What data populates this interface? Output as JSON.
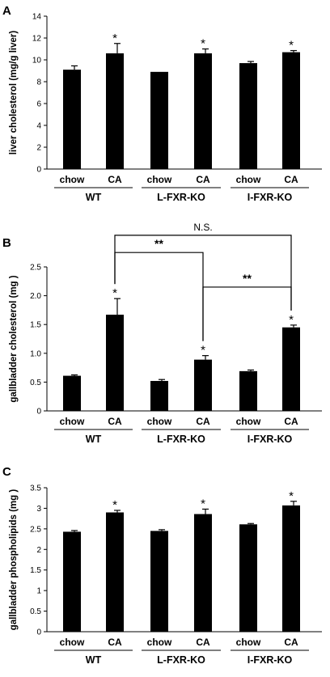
{
  "chart_data": [
    {
      "type": "bar",
      "panel_label": "A",
      "ylabel": "liver cholesterol (mg/g liver)",
      "ylim": [
        0,
        14
      ],
      "yticks": [
        0,
        2,
        4,
        6,
        8,
        10,
        12,
        14
      ],
      "categories": [
        "chow",
        "CA",
        "chow",
        "CA",
        "chow",
        "CA"
      ],
      "groups": [
        "WT",
        "L-FXR-KO",
        "I-FXR-KO"
      ],
      "values": [
        9.1,
        10.6,
        8.9,
        10.6,
        9.7,
        10.7
      ],
      "errors": [
        0.35,
        0.9,
        0.0,
        0.4,
        0.15,
        0.15
      ],
      "markers": [
        "",
        "*",
        "",
        "*",
        "",
        "*"
      ],
      "bar_color": "#000000",
      "brackets": []
    },
    {
      "type": "bar",
      "panel_label": "B",
      "ylabel": "gallbladder cholesterol (mg )",
      "ylim": [
        0,
        2.5
      ],
      "yticks": [
        "0",
        "0.5",
        "1.0",
        "1.5",
        "2.0",
        "2.5"
      ],
      "ytick_values": [
        0,
        0.5,
        1.0,
        1.5,
        2.0,
        2.5
      ],
      "categories": [
        "chow",
        "CA",
        "chow",
        "CA",
        "chow",
        "CA"
      ],
      "groups": [
        "WT",
        "L-FXR-KO",
        "I-FXR-KO"
      ],
      "values": [
        0.61,
        1.67,
        0.52,
        0.89,
        0.69,
        1.45
      ],
      "errors": [
        0.015,
        0.28,
        0.025,
        0.07,
        0.02,
        0.04
      ],
      "markers": [
        "",
        "*",
        "",
        "*",
        "",
        "*"
      ],
      "bar_color": "#000000",
      "brackets": [
        {
          "from": 1,
          "to": 5,
          "label": "N.S.",
          "level": 3.05
        },
        {
          "from": 1,
          "to": 3,
          "label": "**",
          "level": 2.75
        },
        {
          "from": 3,
          "to": 5,
          "label": "**",
          "level": 2.15
        }
      ]
    },
    {
      "type": "bar",
      "panel_label": "C",
      "ylabel": "gallbladder phospholipids (mg )",
      "ylim": [
        0,
        3.5
      ],
      "yticks": [
        "0",
        "0.5",
        "1",
        "1.5",
        "2",
        "2.5",
        "3",
        "3.5"
      ],
      "ytick_values": [
        0,
        0.5,
        1,
        1.5,
        2,
        2.5,
        3,
        3.5
      ],
      "categories": [
        "chow",
        "CA",
        "chow",
        "CA",
        "chow",
        "CA"
      ],
      "groups": [
        "WT",
        "L-FXR-KO",
        "I-FXR-KO"
      ],
      "values": [
        2.43,
        2.9,
        2.45,
        2.86,
        2.61,
        3.07
      ],
      "errors": [
        0.03,
        0.05,
        0.03,
        0.12,
        0.02,
        0.1
      ],
      "markers": [
        "",
        "*",
        "",
        "*",
        "",
        "*"
      ],
      "bar_color": "#000000",
      "brackets": []
    }
  ]
}
